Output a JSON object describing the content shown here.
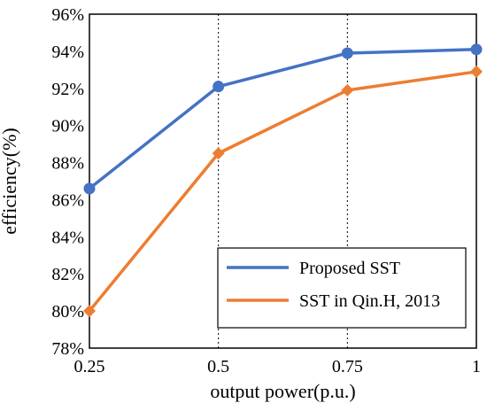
{
  "chart_data": {
    "type": "line",
    "title": "",
    "xlabel": "output power(p.u.)",
    "ylabel": "efficiency(%)",
    "x": [
      0.25,
      0.5,
      0.75,
      1
    ],
    "x_tick_labels": [
      "0.25",
      "0.5",
      "0.75",
      "1"
    ],
    "ylim": [
      78,
      96
    ],
    "y_ticks": [
      78,
      80,
      82,
      84,
      86,
      88,
      90,
      92,
      94,
      96
    ],
    "y_tick_labels": [
      "78%",
      "80%",
      "82%",
      "84%",
      "86%",
      "88%",
      "90%",
      "92%",
      "94%",
      "96%"
    ],
    "grid": {
      "vertical": "dotted",
      "horizontal": "none"
    },
    "legend_position": "bottom-right",
    "series": [
      {
        "name": "Proposed SST",
        "color": "#4472C4",
        "marker": "circle",
        "values": [
          86.6,
          92.1,
          93.9,
          94.1
        ]
      },
      {
        "name": "SST in Qin.H, 2013",
        "color": "#ED7D31",
        "marker": "diamond",
        "values": [
          80.0,
          88.5,
          91.9,
          92.9
        ]
      }
    ]
  }
}
